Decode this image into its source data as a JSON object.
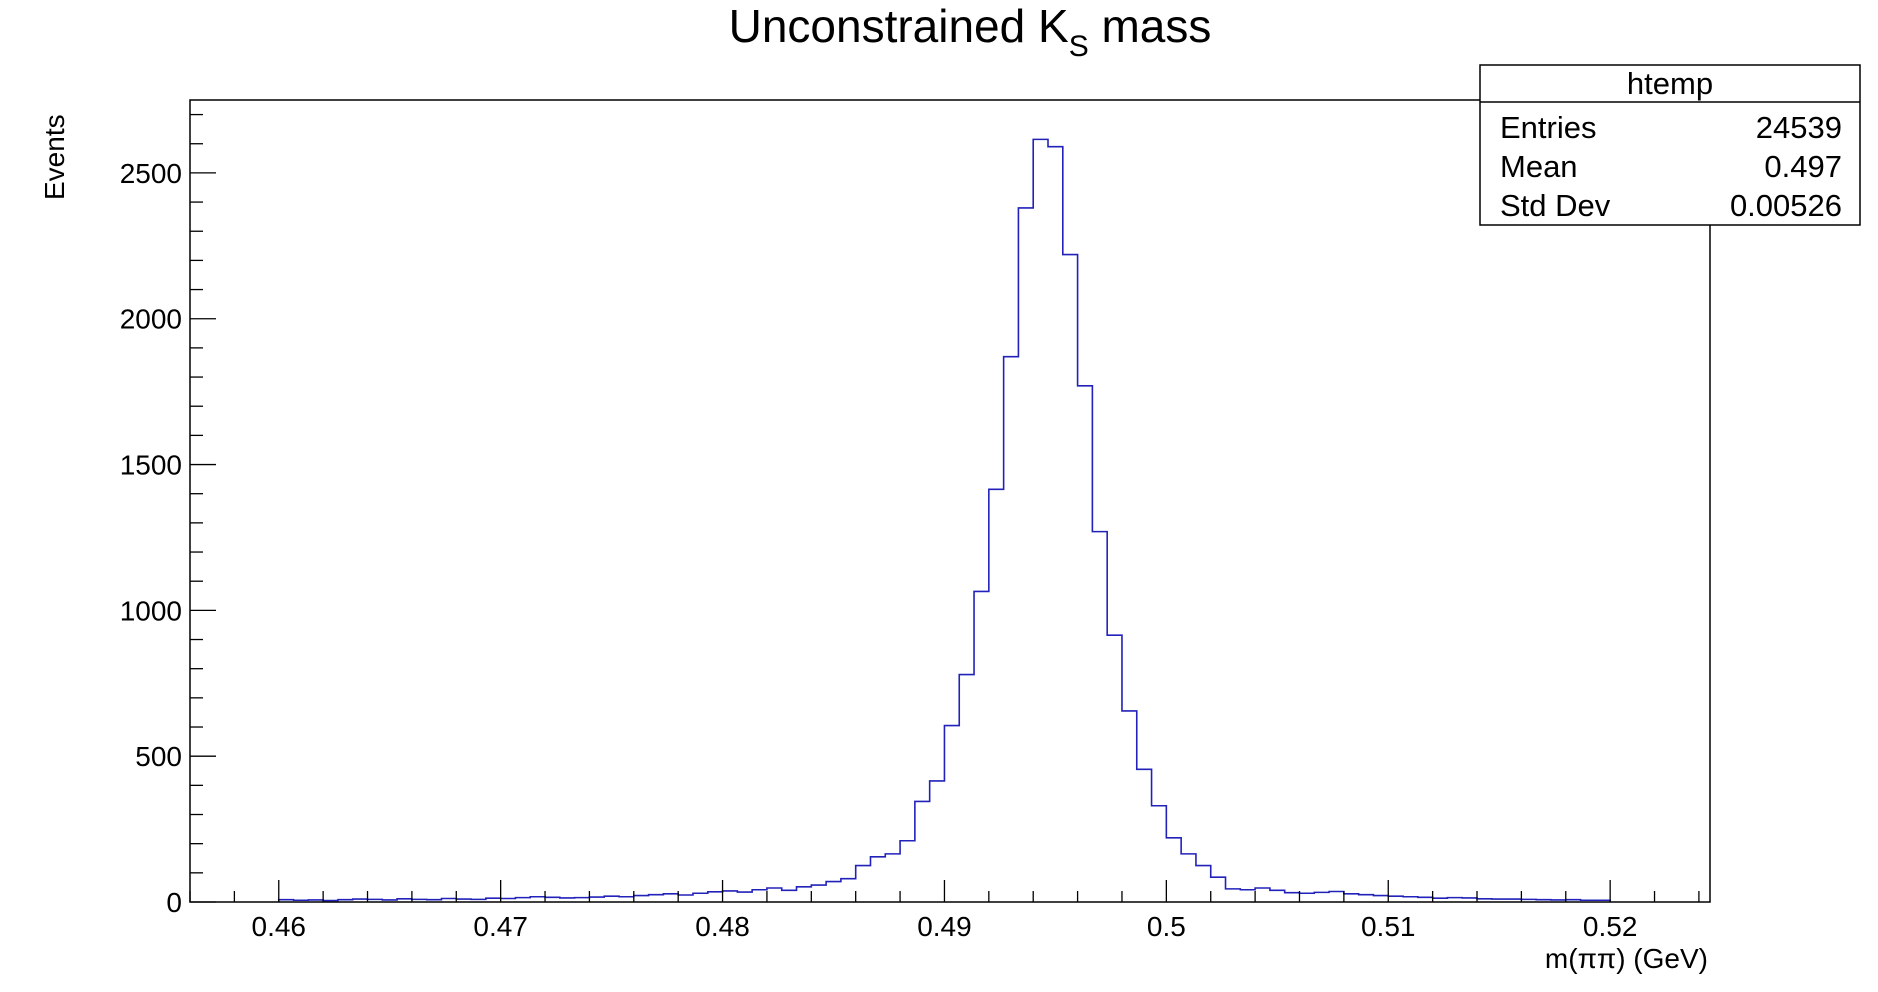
{
  "chart_data": {
    "type": "histogram",
    "title": "Unconstrained K",
    "title_subscript": "S",
    "title_suffix": " mass",
    "xlabel": "m(ππ) (GeV)",
    "ylabel": "Events",
    "xlim": [
      0.456,
      0.5245
    ],
    "ylim": [
      0,
      2750
    ],
    "xticks": [
      {
        "value": 0.46,
        "label": "0.46"
      },
      {
        "value": 0.47,
        "label": "0.47"
      },
      {
        "value": 0.48,
        "label": "0.48"
      },
      {
        "value": 0.49,
        "label": "0.49"
      },
      {
        "value": 0.5,
        "label": "0.5"
      },
      {
        "value": 0.51,
        "label": "0.51"
      },
      {
        "value": 0.52,
        "label": "0.52"
      }
    ],
    "yticks": [
      {
        "value": 0,
        "label": "0"
      },
      {
        "value": 500,
        "label": "500"
      },
      {
        "value": 1000,
        "label": "1000"
      },
      {
        "value": 1500,
        "label": "1500"
      },
      {
        "value": 2000,
        "label": "2000"
      },
      {
        "value": 2500,
        "label": "2500"
      }
    ],
    "bins": {
      "x_low": 0.46,
      "x_high": 0.52,
      "counts": [
        8,
        6,
        7,
        5,
        8,
        10,
        9,
        7,
        11,
        9,
        8,
        12,
        10,
        9,
        13,
        12,
        15,
        18,
        16,
        14,
        15,
        17,
        20,
        18,
        22,
        25,
        28,
        24,
        30,
        35,
        38,
        34,
        42,
        48,
        40,
        52,
        58,
        70,
        80,
        125,
        155,
        165,
        210,
        345,
        415,
        605,
        780,
        1065,
        1415,
        1870,
        2380,
        2615,
        2590,
        2220,
        1770,
        1270,
        915,
        655,
        455,
        330,
        220,
        165,
        125,
        85,
        45,
        42,
        48,
        40,
        32,
        30,
        33,
        36,
        28,
        25,
        22,
        20,
        18,
        16,
        13,
        15,
        14,
        11,
        10,
        10,
        9,
        8,
        7,
        8,
        6,
        6
      ],
      "color": "#2222bb"
    },
    "stats_box": {
      "name": "htemp",
      "rows": [
        {
          "label": "Entries",
          "value": "24539"
        },
        {
          "label": "Mean",
          "value": "0.497"
        },
        {
          "label": "Std Dev",
          "value": "0.00526"
        }
      ]
    },
    "grid": false
  }
}
